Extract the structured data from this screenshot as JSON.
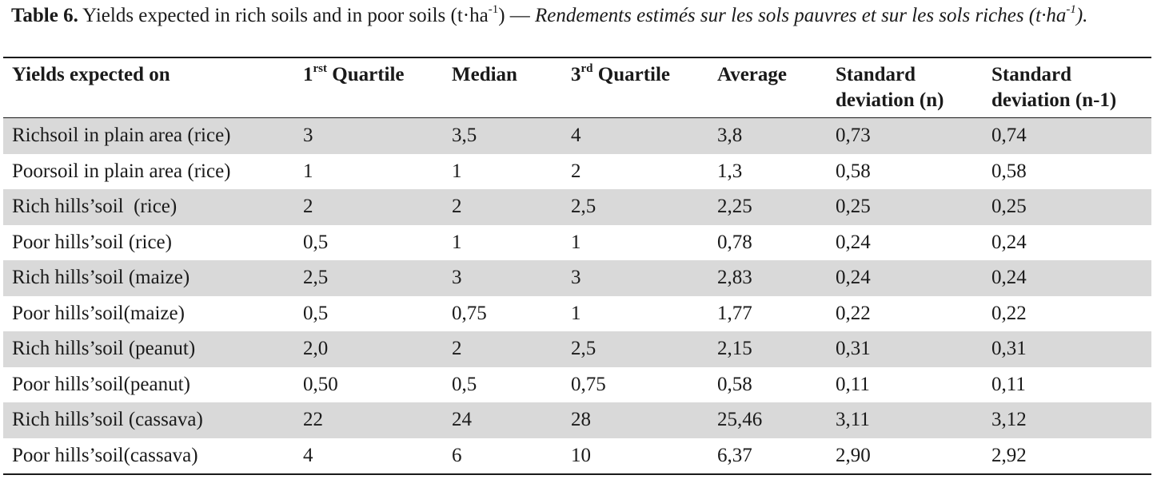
{
  "caption": {
    "label": "Table 6.",
    "text_en_pre": " Yields expected in rich soils and in poor soils (t·ha",
    "text_en_sup": "-1",
    "text_en_post": ") — ",
    "text_fr_pre": "Rendements estimés sur les sols pauvres et sur les sols riches (t·ha",
    "text_fr_sup": "-1",
    "text_fr_post": ")."
  },
  "table": {
    "headers": {
      "col0": "Yields expected on",
      "col1_num": "1",
      "col1_sup": "rst",
      "col1_text": " Quartile",
      "col2": "Median",
      "col3_num": "3",
      "col3_sup": "rd",
      "col3_text": " Quartile",
      "col4": "Average",
      "col5_line1": "Standard",
      "col5_line2": "deviation (n)",
      "col6_line1": "Standard",
      "col6_line2": "deviation (n-1)"
    },
    "rows": [
      {
        "label": "Richsoil in plain area (rice)",
        "q1": "3",
        "median": "3,5",
        "q3": "4",
        "average": "3,8",
        "sd_n": "0,73",
        "sd_n1": "0,74"
      },
      {
        "label": "Poorsoil in plain area (rice)",
        "q1": "1",
        "median": "1",
        "q3": "2",
        "average": "1,3",
        "sd_n": "0,58",
        "sd_n1": "0,58"
      },
      {
        "label": "Rich hills’soil  (rice)",
        "q1": "2",
        "median": "2",
        "q3": "2,5",
        "average": "2,25",
        "sd_n": "0,25",
        "sd_n1": "0,25"
      },
      {
        "label": "Poor hills’soil (rice)",
        "q1": "0,5",
        "median": "1",
        "q3": "1",
        "average": "0,78",
        "sd_n": "0,24",
        "sd_n1": "0,24"
      },
      {
        "label": "Rich hills’soil (maize)",
        "q1": "2,5",
        "median": "3",
        "q3": "3",
        "average": "2,83",
        "sd_n": "0,24",
        "sd_n1": "0,24"
      },
      {
        "label": "Poor hills’soil(maize)",
        "q1": "0,5",
        "median": "0,75",
        "q3": "1",
        "average": "1,77",
        "sd_n": "0,22",
        "sd_n1": "0,22"
      },
      {
        "label": "Rich hills’soil (peanut)",
        "q1": "2,0",
        "median": "2",
        "q3": "2,5",
        "average": "2,15",
        "sd_n": "0,31",
        "sd_n1": "0,31"
      },
      {
        "label": "Poor hills’soil(peanut)",
        "q1": "0,50",
        "median": "0,5",
        "q3": "0,75",
        "average": "0,58",
        "sd_n": "0,11",
        "sd_n1": "0,11"
      },
      {
        "label": "Rich hills’soil (cassava)",
        "q1": "22",
        "median": "24",
        "q3": "28",
        "average": "25,46",
        "sd_n": "3,11",
        "sd_n1": "3,12"
      },
      {
        "label": "Poor hills’soil(cassava)",
        "q1": "4",
        "median": "6",
        "q3": "10",
        "average": "6,37",
        "sd_n": "2,90",
        "sd_n1": "2,92"
      }
    ],
    "shading_color": "#d9d9d9"
  }
}
